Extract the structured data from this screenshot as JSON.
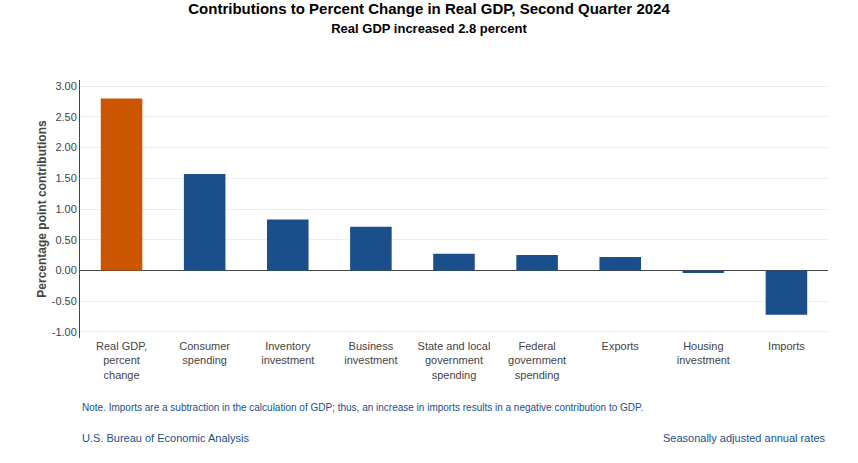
{
  "chart_data": {
    "type": "bar",
    "title": "Contributions to Percent Change in Real GDP, Second Quarter 2024",
    "subtitle": "Real GDP increased 2.8 percent",
    "categories": [
      "Real GDP,\npercent\nchange",
      "Consumer\nspending",
      "Inventory\ninvestment",
      "Business\ninvestment",
      "State and local\ngovernment\nspending",
      "Federal\ngovernment\nspending",
      "Exports",
      "Housing\ninvestment",
      "Imports"
    ],
    "values": [
      2.8,
      1.57,
      0.83,
      0.71,
      0.27,
      0.25,
      0.22,
      -0.04,
      -0.72
    ],
    "colors": [
      "#CC5500",
      "#1B4F8C",
      "#1B4F8C",
      "#1B4F8C",
      "#1B4F8C",
      "#1B4F8C",
      "#1B4F8C",
      "#1B4F8C",
      "#1B4F8C"
    ],
    "ylabel": "Percentage point contributions",
    "ylim": [
      -1.1,
      3.1
    ],
    "yticks": [
      {
        "value": -1.0,
        "label": "-1.00"
      },
      {
        "value": -0.5,
        "label": "-0.50"
      },
      {
        "value": 0.0,
        "label": "0.00"
      },
      {
        "value": 0.5,
        "label": "0.50"
      },
      {
        "value": 1.0,
        "label": "1.00"
      },
      {
        "value": 1.5,
        "label": "1.50"
      },
      {
        "value": 2.0,
        "label": "2.00"
      },
      {
        "value": 2.5,
        "label": "2.50"
      },
      {
        "value": 3.0,
        "label": "3.00"
      }
    ],
    "grid": true,
    "annotations": [
      {
        "text": "Note. Imports are a subtraction in the calculation of GDP; thus, an increase in imports results in a negative contribution to GDP.",
        "color": "#1B4F8C"
      },
      {
        "text": "U.S. Bureau of Economic Analysis",
        "color": "#1B4F8C"
      },
      {
        "text": "Seasonally adjusted annual rates",
        "color": "#1B4F8C"
      }
    ]
  }
}
